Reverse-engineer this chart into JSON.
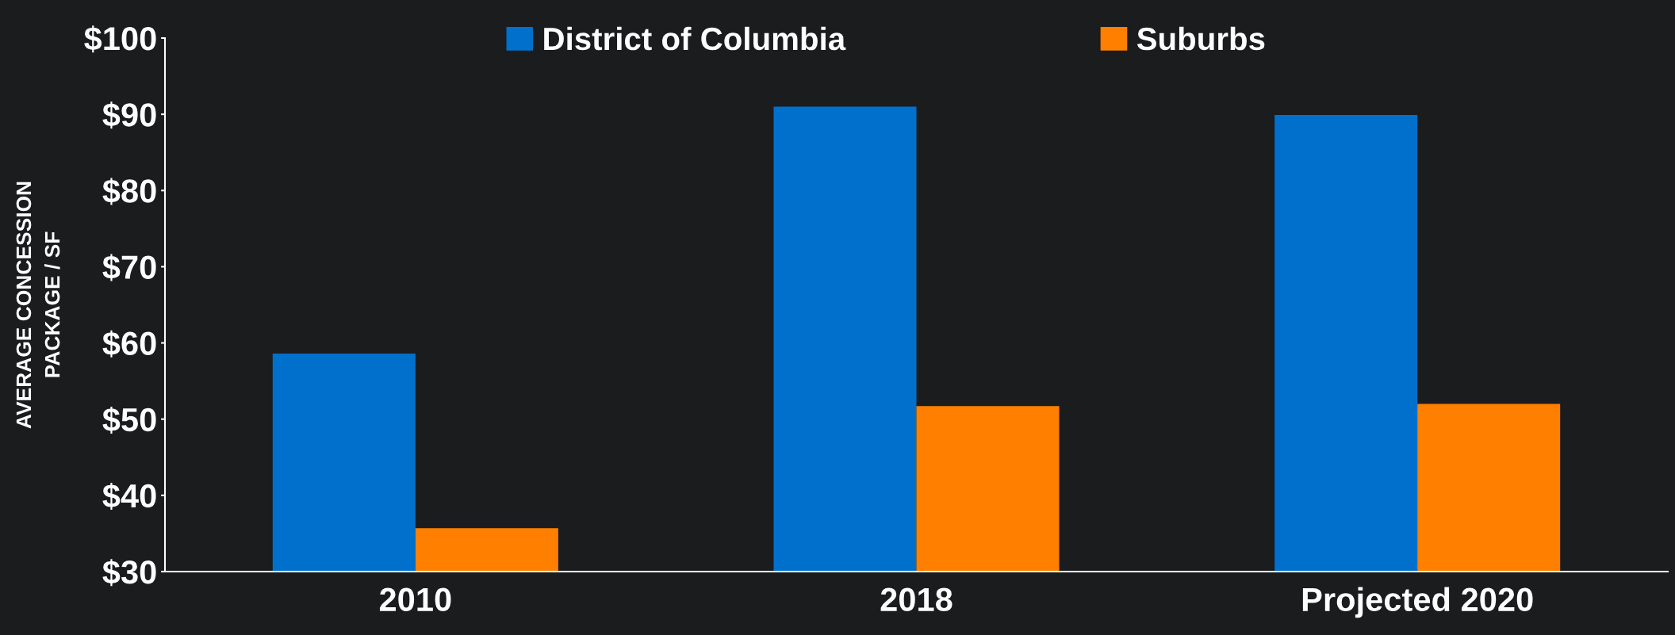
{
  "chart_data": {
    "type": "bar",
    "ylabel": "AVERAGE CONCESSION\nPACKAGE / SF",
    "categories": [
      "2010",
      "2018",
      "Projected 2020"
    ],
    "series": [
      {
        "name": "District of Columbia",
        "color": "#0070cd",
        "values": [
          58.6,
          91.0,
          89.9
        ]
      },
      {
        "name": "Suburbs",
        "color": "#ff8000",
        "values": [
          35.7,
          51.7,
          52.0
        ]
      }
    ],
    "ylim": [
      30,
      100
    ],
    "yticks": [
      {
        "value": 30,
        "label": "$30"
      },
      {
        "value": 40,
        "label": "$40"
      },
      {
        "value": 50,
        "label": "$50"
      },
      {
        "value": 60,
        "label": "$60"
      },
      {
        "value": 70,
        "label": "$70"
      },
      {
        "value": 80,
        "label": "$80"
      },
      {
        "value": 90,
        "label": "$90"
      },
      {
        "value": 100,
        "label": "$100"
      }
    ],
    "grid": false,
    "legend": "top"
  }
}
